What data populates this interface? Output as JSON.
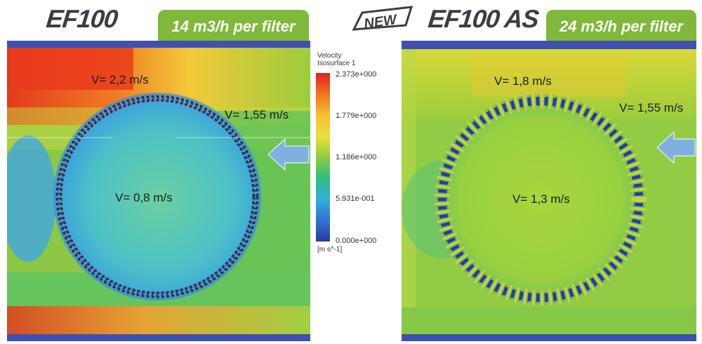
{
  "left": {
    "title": "EF100",
    "flow": "14 m3/h per filter",
    "labels": {
      "top": "V= 2,2 m/s",
      "side": "V= 1,55 m/s",
      "center": "V= 0,8 m/s"
    }
  },
  "right": {
    "badge": "NEW",
    "title": "EF100 AS",
    "flow": "24 m3/h per filter",
    "labels": {
      "top": "V= 1,8 m/s",
      "side": "V= 1,55 m/s",
      "center": "V= 1,3 m/s"
    }
  },
  "legend": {
    "title_line1": "Velocity",
    "title_line2": "Isosurface 1",
    "ticks": [
      "2.373e+000",
      "1.779e+000",
      "1.186e+000",
      "5.931e-001",
      "0.000e+000"
    ],
    "unit": "[m s^-1]"
  },
  "colors": {
    "tab": "#7fb83a",
    "arrow": "#7fb0e0",
    "frame": "#4050b0"
  }
}
